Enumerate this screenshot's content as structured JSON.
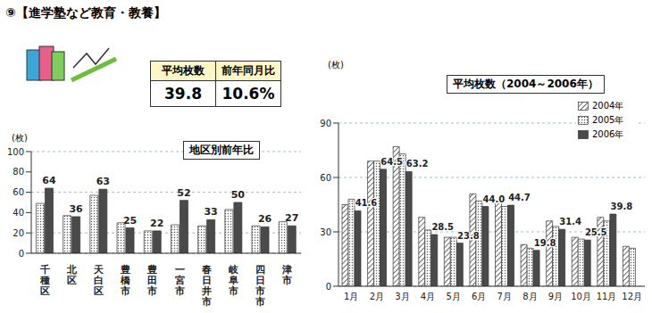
{
  "title": "⑨【進学塾など教育・教養】",
  "summary": {
    "headers": [
      "平均枚数",
      "前年同月比"
    ],
    "values": [
      "39.8",
      "10.6%"
    ]
  },
  "chart_data": [
    {
      "type": "bar",
      "title": "地区別前年比",
      "y_label": "(枚)",
      "categories": [
        "千種区",
        "北区",
        "天白区",
        "豊橋市",
        "豊田市",
        "一宮市",
        "春日井市",
        "岐阜市",
        "四日市市",
        "津市"
      ],
      "series": [
        {
          "color": "#555555",
          "values": [
            49,
            37,
            57,
            30,
            22,
            28,
            27,
            43,
            27,
            31
          ]
        },
        {
          "color": "#4a4a4a",
          "values": [
            64,
            36,
            63,
            25,
            22,
            52,
            33,
            50,
            26,
            27
          ],
          "data_labels": true
        }
      ],
      "ylim": [
        0,
        100
      ],
      "yticks": [
        0,
        20,
        40,
        60,
        80,
        100
      ],
      "grid": true
    },
    {
      "type": "bar",
      "title": "平均枚数（2004～2006年）",
      "y_label": "(枚)",
      "categories": [
        "1月",
        "2月",
        "3月",
        "4月",
        "5月",
        "6月",
        "7月",
        "8月",
        "9月",
        "10月",
        "11月",
        "12月"
      ],
      "series": [
        {
          "name": "2004年",
          "color": "#444444",
          "values": [
            45,
            69,
            77,
            38,
            27,
            51,
            47,
            23,
            36,
            27,
            38,
            22
          ]
        },
        {
          "name": "2005年",
          "color": "#555555",
          "values": [
            48,
            69,
            73,
            31,
            27,
            47,
            44,
            21,
            33,
            26,
            36,
            21
          ]
        },
        {
          "name": "2006年",
          "color": "#4a4a4a",
          "values": [
            41.6,
            64.5,
            63.2,
            28.5,
            23.8,
            44.0,
            44.7,
            19.8,
            31.4,
            25.5,
            39.8,
            null
          ],
          "data_labels": true,
          "value_labels": [
            "41.6",
            "64.5",
            "63.2",
            "28.5",
            "23.8",
            "44.0",
            "44.7",
            "19.8",
            "31.4",
            "25.5",
            "39.8",
            null
          ]
        }
      ],
      "ylim": [
        0,
        90
      ],
      "yticks": [
        0,
        30,
        60,
        90
      ],
      "grid": true,
      "legend": "top-right"
    }
  ]
}
